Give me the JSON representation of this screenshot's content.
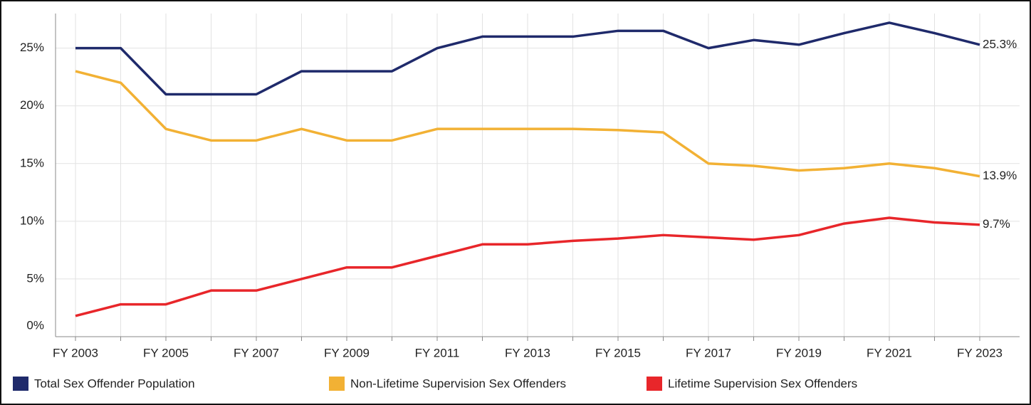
{
  "chart_data": {
    "type": "line",
    "categories": [
      "FY 2003",
      null,
      "FY 2005",
      null,
      "FY 2007",
      null,
      "FY 2009",
      null,
      "FY 2011",
      null,
      "FY 2013",
      null,
      "FY 2015",
      null,
      "FY 2017",
      null,
      "FY 2019",
      null,
      "FY 2021",
      null,
      "FY 2023"
    ],
    "series": [
      {
        "name": "Total Sex Offender Population",
        "color": "#1f2a6b",
        "values": [
          25,
          25,
          21,
          21,
          21,
          23,
          23,
          23,
          25,
          26,
          26,
          26,
          26.5,
          26.5,
          25,
          25.7,
          25.3,
          26.3,
          27.2,
          26.3,
          25.3
        ],
        "value_labels": [
          null,
          null,
          null,
          null,
          null,
          null,
          null,
          null,
          null,
          null,
          null,
          null,
          null,
          null,
          null,
          null,
          null,
          null,
          null,
          null,
          "25.3%"
        ]
      },
      {
        "name": "Non-Lifetime Supervision Sex Offenders",
        "color": "#f2b134",
        "values": [
          23,
          22,
          18,
          17,
          17,
          18,
          17,
          17,
          18,
          18,
          18,
          18,
          17.9,
          17.7,
          15,
          14.8,
          14.4,
          14.6,
          15,
          14.6,
          13.9
        ],
        "value_labels": [
          null,
          null,
          null,
          null,
          null,
          null,
          null,
          null,
          null,
          null,
          null,
          null,
          null,
          null,
          null,
          null,
          null,
          null,
          null,
          null,
          "13.9%"
        ]
      },
      {
        "name": "Lifetime Supervision Sex Offenders",
        "color": "#e8262a",
        "values": [
          1.8,
          2.8,
          2.8,
          4,
          4,
          5,
          6,
          6,
          7,
          8,
          8,
          8.3,
          8.5,
          8.8,
          8.6,
          8.4,
          8.8,
          9.8,
          10.3,
          9.9,
          9.7
        ],
        "value_labels": [
          null,
          null,
          null,
          null,
          null,
          null,
          null,
          null,
          null,
          null,
          null,
          null,
          null,
          null,
          null,
          null,
          null,
          null,
          null,
          null,
          "9.7%"
        ]
      }
    ],
    "ylim": [
      0,
      28
    ],
    "yticks": [
      {
        "value": 0,
        "label": "0%"
      },
      {
        "value": 5,
        "label": "5%"
      },
      {
        "value": 10,
        "label": "10%"
      },
      {
        "value": 15,
        "label": "15%"
      },
      {
        "value": 20,
        "label": "20%"
      },
      {
        "value": 25,
        "label": "25%"
      }
    ],
    "grid": true,
    "legend": "bottom"
  }
}
